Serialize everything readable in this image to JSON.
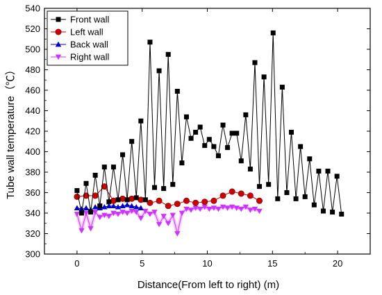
{
  "chart_data": {
    "type": "line",
    "xlabel": "Distance(From left to right) (m)",
    "ylabel": "Tube wall temperature（℃）",
    "xlim": [
      -2.5,
      22.5
    ],
    "ylim": [
      300,
      540
    ],
    "xticks": [
      0,
      5,
      10,
      15,
      20
    ],
    "yticks": [
      300,
      320,
      340,
      360,
      380,
      400,
      420,
      440,
      460,
      480,
      500,
      520,
      540
    ],
    "grid": false,
    "legend": "top-left",
    "series": [
      {
        "name": "Front wall",
        "color": "#000000",
        "marker": "square",
        "x": [
          0,
          0.35,
          0.7,
          1.05,
          1.4,
          1.75,
          2.1,
          2.45,
          2.8,
          3.15,
          3.5,
          3.85,
          4.2,
          4.55,
          4.9,
          5.25,
          5.6,
          5.95,
          6.3,
          6.65,
          7.0,
          7.35,
          7.7,
          8.05,
          8.4,
          8.75,
          9.1,
          9.45,
          9.8,
          10.15,
          10.5,
          10.85,
          11.2,
          11.55,
          11.9,
          12.25,
          12.6,
          12.95,
          13.3,
          13.65,
          14.0,
          14.35,
          14.7,
          15.05,
          15.4,
          15.75,
          16.1,
          16.45,
          16.8,
          17.15,
          17.5,
          17.85,
          18.2,
          18.55,
          18.9,
          19.25,
          19.6,
          19.95,
          20.3
        ],
        "y": [
          362,
          340,
          369,
          341,
          377,
          347,
          385,
          351,
          385,
          353,
          397,
          353,
          410,
          355,
          430,
          353,
          507,
          365,
          479,
          364,
          495,
          368,
          459,
          389,
          434,
          413,
          419,
          424,
          406,
          412,
          405,
          396,
          426,
          404,
          418,
          418,
          391,
          436,
          383,
          487,
          366,
          473,
          368,
          516,
          354,
          463,
          360,
          419,
          354,
          405,
          356,
          393,
          348,
          381,
          342,
          381,
          341,
          376,
          339
        ]
      },
      {
        "name": "Left wall",
        "color": "#cc0000",
        "marker": "circle",
        "x": [
          0,
          0.7,
          1.4,
          2.1,
          2.8,
          3.5,
          4.2,
          4.9,
          5.6,
          6.3,
          7.0,
          7.7,
          8.4,
          9.1,
          9.8,
          10.5,
          11.2,
          11.9,
          12.6,
          13.3,
          14.0
        ],
        "y": [
          356,
          357,
          357,
          366,
          352,
          354,
          354,
          353,
          350,
          352,
          347,
          349,
          352,
          350,
          351,
          352,
          357,
          361,
          359,
          357,
          352
        ]
      },
      {
        "name": "Back wall",
        "color": "#0000cc",
        "marker": "triangle-up",
        "x": [
          0,
          0.35,
          0.7,
          1.05,
          1.4,
          1.75,
          2.1,
          2.45,
          2.8,
          3.15,
          3.5,
          3.85,
          4.2,
          4.55,
          4.9
        ],
        "y": [
          345,
          344,
          345,
          343,
          346,
          345,
          346,
          347,
          347,
          346,
          347,
          348,
          347,
          346,
          345
        ]
      },
      {
        "name": "Right wall",
        "color": "#cc33ff",
        "marker": "triangle-down",
        "x": [
          0,
          0.35,
          0.7,
          1.05,
          1.4,
          1.75,
          2.1,
          2.45,
          2.8,
          3.15,
          3.5,
          3.85,
          4.2,
          4.55,
          4.9,
          5.25,
          5.6,
          5.95,
          6.3,
          6.65,
          7.0,
          7.35,
          7.7,
          8.05,
          8.4,
          8.75,
          9.1,
          9.45,
          9.8,
          10.15,
          10.5,
          10.85,
          11.2,
          11.55,
          11.9,
          12.25,
          12.6,
          12.95,
          13.3,
          13.65,
          14.0
        ],
        "y": [
          339,
          323,
          340,
          325,
          341,
          336,
          338,
          337,
          340,
          339,
          341,
          340,
          342,
          341,
          335,
          342,
          339,
          341,
          329,
          337,
          330,
          338,
          320,
          340,
          344,
          343,
          345,
          344,
          346,
          344,
          345,
          344,
          346,
          345,
          346,
          345,
          344,
          346,
          343,
          344,
          342
        ]
      }
    ]
  }
}
